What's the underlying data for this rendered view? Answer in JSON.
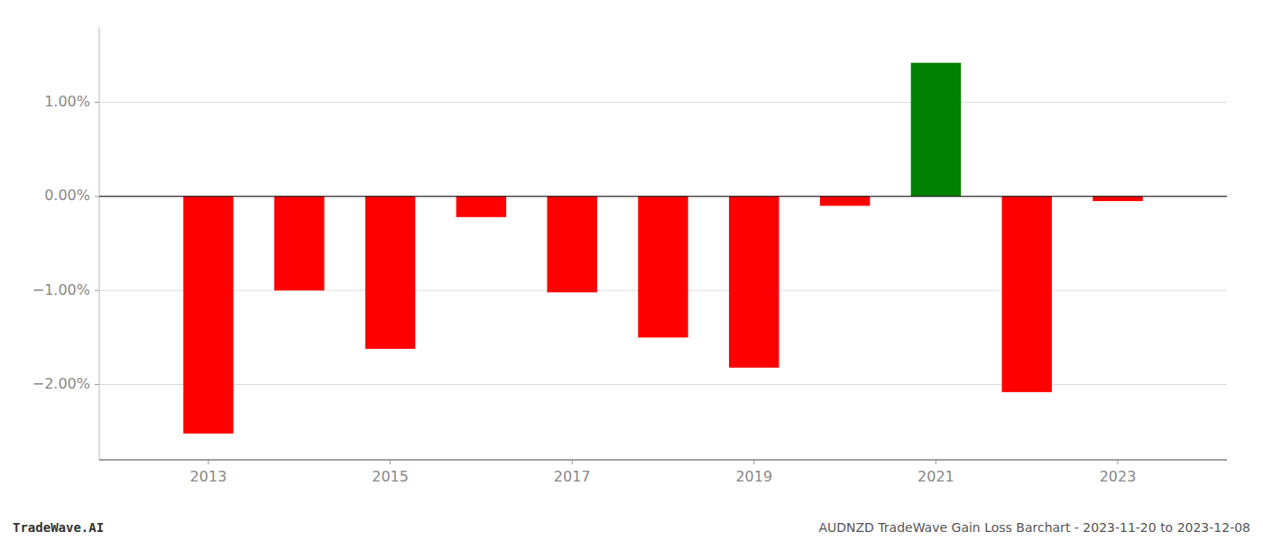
{
  "chart_data": {
    "type": "bar",
    "x": [
      2013,
      2014,
      2015,
      2016,
      2017,
      2018,
      2019,
      2020,
      2021,
      2022,
      2023
    ],
    "values": [
      -2.52,
      -1.0,
      -1.62,
      -0.22,
      -1.02,
      -1.5,
      -1.82,
      -0.1,
      1.42,
      -2.08,
      -0.05
    ],
    "colors": [
      "#ff0000",
      "#ff0000",
      "#ff0000",
      "#ff0000",
      "#ff0000",
      "#ff0000",
      "#ff0000",
      "#ff0000",
      "#008000",
      "#ff0000",
      "#ff0000"
    ],
    "xlim": [
      2011.8,
      2024.2
    ],
    "xticks": [
      2013,
      2015,
      2017,
      2019,
      2021,
      2023
    ],
    "ylim": [
      -2.8,
      1.8
    ],
    "yticks": [
      {
        "value": -2.0,
        "label": "−2.00%"
      },
      {
        "value": -1.0,
        "label": "−1.00%"
      },
      {
        "value": 0.0,
        "label": "0.00%"
      },
      {
        "value": 1.0,
        "label": "1.00%"
      }
    ],
    "grid": true,
    "annotations": [
      "TradeWave.AI",
      "AUDNZD TradeWave Gain Loss Barchart - 2023-11-20 to 2023-12-08"
    ]
  }
}
